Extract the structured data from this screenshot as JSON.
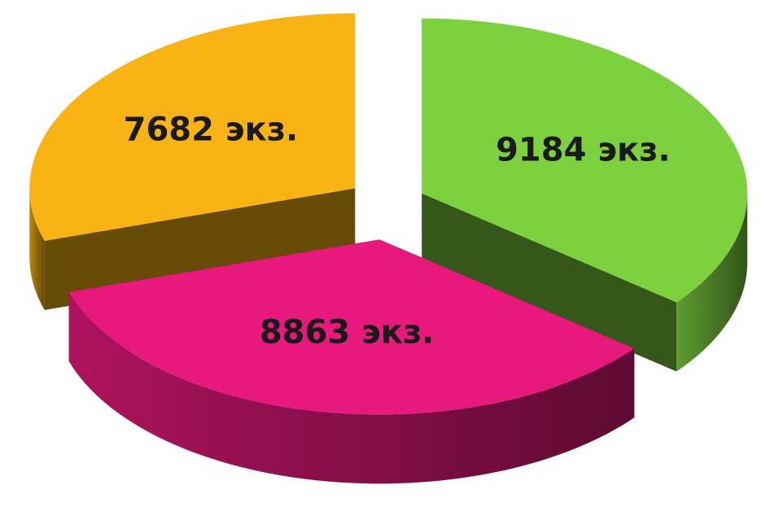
{
  "chart_data": {
    "type": "pie",
    "series": [
      {
        "values": [
          9184,
          8863,
          7682
        ],
        "value_labels": [
          "9184 экз.",
          "8863 экз.",
          "7682 экз."
        ],
        "colors": [
          "#7dd13e",
          "#e8197c",
          "#f9b314"
        ]
      }
    ]
  }
}
